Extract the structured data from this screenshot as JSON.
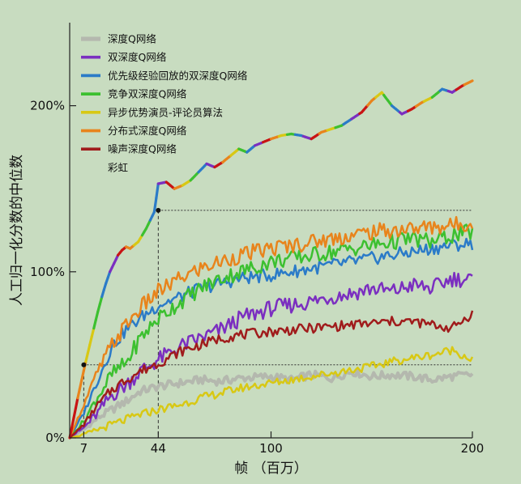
{
  "colors": {
    "background": "#c8dcc0",
    "axis": "#222222",
    "guide": "#333333"
  },
  "chart_data": {
    "type": "line",
    "title": "",
    "xlabel": "帧 （百万）",
    "ylabel": "人工归一化分数的中位数",
    "xlim": [
      0,
      200
    ],
    "ylim": [
      0,
      250
    ],
    "xticks": [
      {
        "value": 7,
        "label": "7"
      },
      {
        "value": 44,
        "label": "44"
      },
      {
        "value": 100,
        "label": "100"
      },
      {
        "value": 200,
        "label": "200"
      }
    ],
    "yticks": [
      {
        "value": 0,
        "label": "0%"
      },
      {
        "value": 100,
        "label": "100%"
      },
      {
        "value": 200,
        "label": "200%"
      }
    ],
    "grid": false,
    "legend": "top-left",
    "guides": [
      {
        "x": 7,
        "y": 44
      },
      {
        "x": 44,
        "y": 137
      }
    ],
    "series": [
      {
        "name": "深度Q网络",
        "color": "#b4b8ae",
        "width": 4,
        "style": "solid",
        "x": [
          0,
          7,
          14,
          21,
          28,
          35,
          44,
          55,
          65,
          75,
          85,
          100,
          110,
          120,
          130,
          140,
          150,
          160,
          170,
          180,
          190,
          200
        ],
        "y": [
          0,
          5,
          12,
          17,
          22,
          28,
          31,
          33,
          35,
          34,
          36,
          37,
          35,
          38,
          36,
          40,
          37,
          38,
          37,
          35,
          37,
          38
        ]
      },
      {
        "name": "双深度Q网络",
        "color": "#7b2fc0",
        "width": 2.5,
        "style": "solid",
        "x": [
          0,
          7,
          14,
          21,
          28,
          35,
          44,
          55,
          65,
          75,
          85,
          100,
          110,
          120,
          130,
          140,
          150,
          160,
          170,
          180,
          190,
          200
        ],
        "y": [
          0,
          6,
          15,
          26,
          32,
          40,
          47,
          55,
          60,
          65,
          72,
          78,
          80,
          82,
          85,
          87,
          90,
          88,
          92,
          90,
          96,
          95
        ]
      },
      {
        "name": "优先级经验回放的双深度Q网络",
        "color": "#2b7bc8",
        "width": 2.5,
        "style": "solid",
        "x": [
          0,
          7,
          14,
          21,
          28,
          35,
          44,
          55,
          65,
          75,
          85,
          100,
          110,
          120,
          130,
          140,
          150,
          160,
          170,
          180,
          190,
          200
        ],
        "y": [
          0,
          15,
          35,
          55,
          65,
          72,
          80,
          85,
          90,
          93,
          96,
          98,
          100,
          102,
          104,
          106,
          108,
          110,
          112,
          114,
          116,
          117
        ]
      },
      {
        "name": "竞争双深度Q网络",
        "color": "#3cc030",
        "width": 2.5,
        "style": "solid",
        "x": [
          0,
          7,
          14,
          21,
          28,
          35,
          44,
          55,
          65,
          75,
          85,
          100,
          110,
          120,
          130,
          140,
          150,
          160,
          170,
          180,
          190,
          200
        ],
        "y": [
          0,
          10,
          25,
          38,
          45,
          60,
          72,
          82,
          90,
          96,
          100,
          106,
          108,
          110,
          112,
          114,
          116,
          118,
          120,
          118,
          122,
          124
        ]
      },
      {
        "name": "异步优势演员-评论员算法",
        "color": "#d8c814",
        "width": 2.5,
        "style": "solid",
        "x": [
          0,
          7,
          14,
          21,
          28,
          35,
          44,
          55,
          65,
          75,
          85,
          100,
          110,
          120,
          130,
          140,
          150,
          160,
          170,
          180,
          190,
          200
        ],
        "y": [
          0,
          2,
          5,
          8,
          11,
          14,
          17,
          20,
          24,
          27,
          30,
          33,
          35,
          37,
          39,
          41,
          43,
          46,
          48,
          50,
          53,
          47
        ]
      },
      {
        "name": "分布式深度Q网络",
        "color": "#e8841c",
        "width": 2.5,
        "style": "solid",
        "x": [
          0,
          7,
          14,
          21,
          28,
          35,
          44,
          55,
          65,
          75,
          85,
          100,
          110,
          120,
          130,
          140,
          150,
          160,
          170,
          180,
          190,
          200
        ],
        "y": [
          0,
          20,
          40,
          56,
          68,
          78,
          88,
          96,
          102,
          106,
          110,
          114,
          116,
          118,
          120,
          122,
          124,
          125,
          126,
          127,
          128,
          130
        ]
      },
      {
        "name": "噪声深度Q网络",
        "color": "#a01c1c",
        "width": 2.5,
        "style": "solid",
        "x": [
          0,
          7,
          14,
          21,
          28,
          35,
          44,
          55,
          65,
          75,
          85,
          100,
          110,
          120,
          130,
          140,
          150,
          160,
          170,
          180,
          190,
          200
        ],
        "y": [
          0,
          8,
          20,
          29,
          35,
          40,
          45,
          52,
          56,
          60,
          62,
          64,
          65,
          66,
          67,
          68,
          69,
          70,
          70,
          68,
          66,
          75
        ]
      },
      {
        "name": "彩虹",
        "color": "#222222",
        "width": 3.2,
        "style": "rainbow",
        "x": [
          0,
          2,
          4,
          6,
          8,
          10,
          12,
          14,
          16,
          18,
          20,
          22,
          24,
          26,
          28,
          30,
          32,
          34,
          36,
          38,
          40,
          42,
          44,
          48,
          52,
          56,
          60,
          64,
          68,
          72,
          76,
          80,
          84,
          88,
          92,
          96,
          100,
          105,
          110,
          115,
          120,
          125,
          130,
          135,
          140,
          145,
          150,
          155,
          160,
          165,
          170,
          175,
          180,
          185,
          190,
          195,
          200
        ],
        "y": [
          0,
          12,
          24,
          35,
          46,
          56,
          66,
          76,
          85,
          93,
          100,
          105,
          110,
          113,
          115,
          114,
          116,
          118,
          122,
          126,
          131,
          136,
          153,
          154,
          150,
          152,
          155,
          160,
          165,
          163,
          166,
          170,
          174,
          172,
          176,
          178,
          180,
          182,
          183,
          182,
          180,
          184,
          186,
          188,
          192,
          196,
          203,
          208,
          200,
          195,
          198,
          202,
          205,
          210,
          208,
          212,
          215
        ],
        "gradient": [
          "#c81414",
          "#e8841c",
          "#d8c814",
          "#3cc030",
          "#2b7bc8",
          "#7b2fc0"
        ]
      }
    ]
  }
}
